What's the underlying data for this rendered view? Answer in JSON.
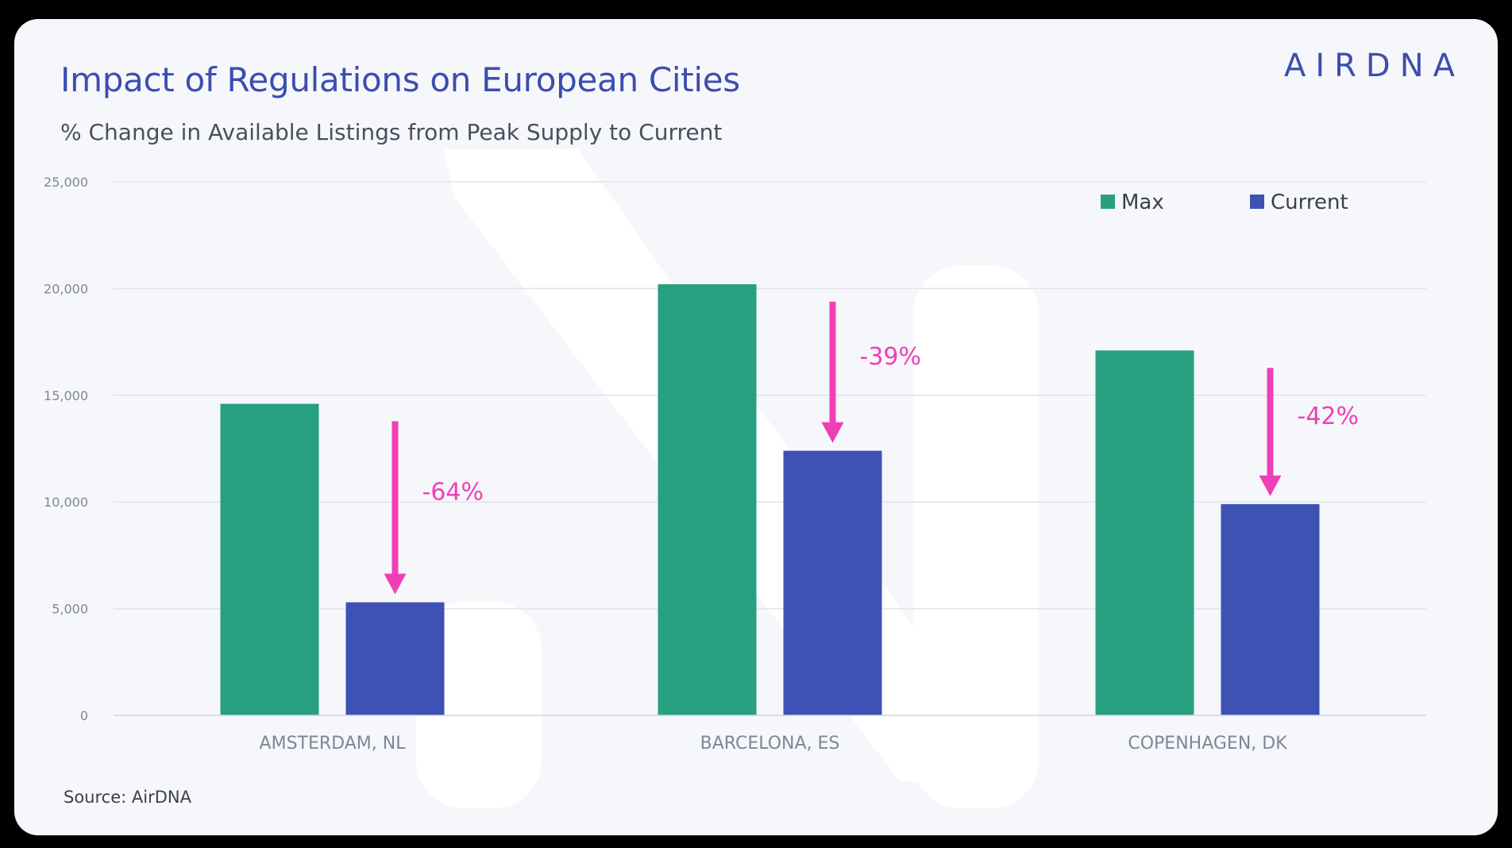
{
  "logo": "AIRDNA",
  "source": "Source: AirDNA",
  "colors": {
    "max": "#27a081",
    "current": "#3d52b4",
    "arrow": "#f03fb6",
    "title": "#3c4db0",
    "grid": "#e1e3ea",
    "tick": "#808597"
  },
  "chart_data": {
    "type": "bar",
    "title": "Impact of Regulations on European Cities",
    "subtitle": "% Change in Available Listings from Peak Supply to Current",
    "categories": [
      "AMSTERDAM, NL",
      "BARCELONA, ES",
      "COPENHAGEN, DK"
    ],
    "series": [
      {
        "name": "Max",
        "values": [
          14600,
          20200,
          17100
        ]
      },
      {
        "name": "Current",
        "values": [
          5300,
          12400,
          9900
        ]
      }
    ],
    "annotations": [
      "-64%",
      "-39%",
      "-42%"
    ],
    "ylim": [
      0,
      25000
    ],
    "yticks": [
      0,
      5000,
      10000,
      15000,
      20000,
      25000
    ],
    "ytick_labels": [
      "0",
      "5,000",
      "10,000",
      "15,000",
      "20,000",
      "25,000"
    ],
    "grid": true,
    "legend_position": "top-right"
  }
}
